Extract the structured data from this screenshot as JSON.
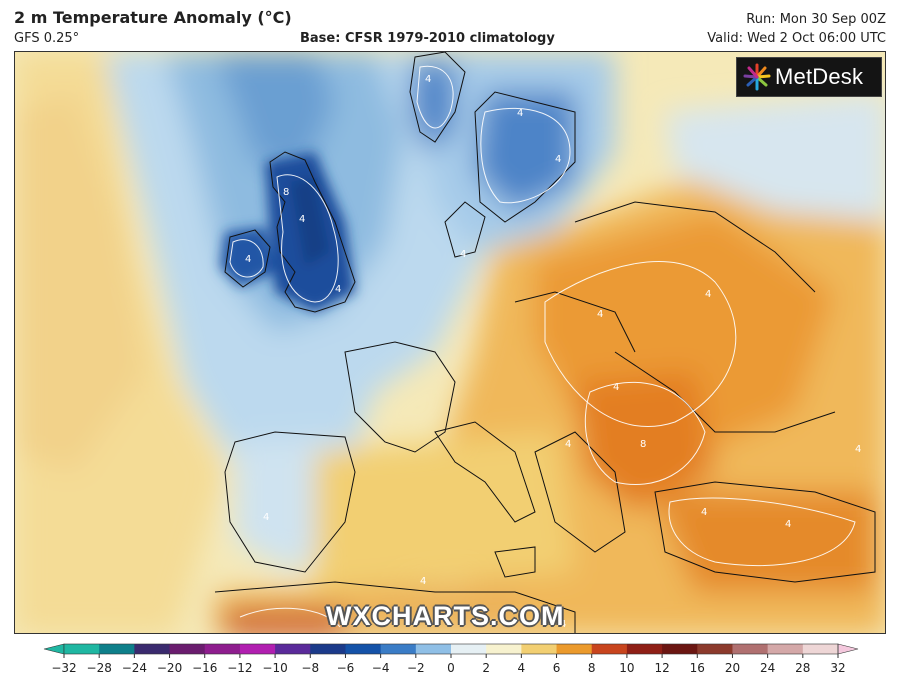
{
  "header": {
    "title": "2 m Temperature Anomaly (°C)",
    "model": "GFS 0.25°",
    "base": "Base: CFSR 1979-2010 climatology",
    "run": "Run: Mon 30 Sep 00Z",
    "valid": "Valid: Wed 2 Oct 06:00 UTC"
  },
  "logo": {
    "text": "MetDesk"
  },
  "watermark": "WXCHARTS.COM",
  "colorbar": {
    "ticks": [
      "−32",
      "−28",
      "−24",
      "−20",
      "−16",
      "−12",
      "−10",
      "−8",
      "−6",
      "−4",
      "−2",
      "0",
      "2",
      "4",
      "6",
      "8",
      "10",
      "12",
      "16",
      "20",
      "24",
      "28",
      "32"
    ],
    "colors": [
      "#1fb7a2",
      "#0e7f8a",
      "#3a2a6e",
      "#6a1c6e",
      "#8e1d8e",
      "#b11fb0",
      "#5a2a9a",
      "#1b3a8a",
      "#1452a8",
      "#3a7cc6",
      "#8fbfe6",
      "#e6f0f4",
      "#f7f2cf",
      "#f2cf72",
      "#eb9a2c",
      "#c8441d",
      "#8f1f16",
      "#6b1612",
      "#8c3a2c",
      "#b07070",
      "#d4a8a8",
      "#eed6d6"
    ]
  },
  "map": {
    "contour_labels": [
      "8",
      "4",
      "4",
      "4",
      "4",
      "4",
      "4",
      "4",
      "4",
      "4",
      "4",
      "8",
      "4",
      "4",
      "4",
      "4",
      "4",
      "4",
      "4"
    ]
  }
}
